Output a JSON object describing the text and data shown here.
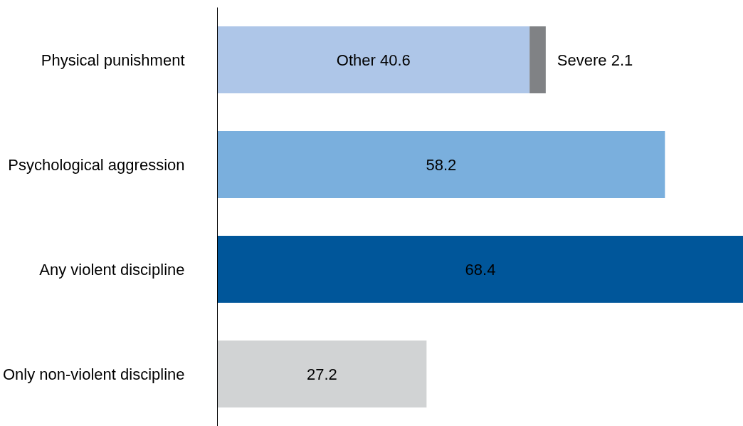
{
  "chart_data": {
    "type": "bar",
    "orientation": "horizontal",
    "stacked": true,
    "categories": [
      "Physical punishment",
      "Psychological aggression",
      "Any violent discipline",
      "Only non-violent discipline"
    ],
    "xlim": [
      0,
      68.4
    ],
    "tick_labels": "y",
    "grid": false,
    "series": [
      {
        "colors": [
          "#aec6e8",
          "#7aafdd",
          "#00569a",
          "#d1d3d4"
        ],
        "values": [
          40.6,
          58.2,
          68.4,
          27.2
        ],
        "value_labels": [
          "Other 40.6",
          "58.2",
          "68.4",
          "27.2"
        ]
      },
      {
        "color": "#808285",
        "values": [
          2.1,
          null,
          null,
          null
        ],
        "value_labels": [
          "Severe 2.1",
          null,
          null,
          null
        ]
      }
    ]
  }
}
